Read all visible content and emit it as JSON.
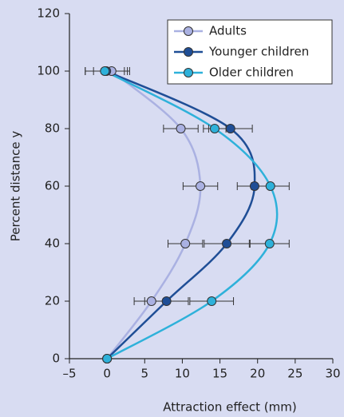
{
  "chart_data": {
    "type": "line",
    "xlabel": "Attraction effect (mm)",
    "ylabel": "Percent distance y",
    "y": [
      0,
      20,
      40,
      60,
      80,
      100
    ],
    "series": [
      {
        "name": "Adults",
        "color": "#aab1e2",
        "values": [
          0,
          5.9,
          10.4,
          12.4,
          9.8,
          0.6
        ],
        "errors": [
          null,
          2.3,
          2.3,
          2.3,
          2.3,
          2.4
        ]
      },
      {
        "name": "Younger children",
        "color": "#1f4e96",
        "values": [
          0,
          7.9,
          15.9,
          19.6,
          16.4,
          -0.1
        ],
        "errors": [
          null,
          2.9,
          3.0,
          2.3,
          2.9,
          2.8
        ]
      },
      {
        "name": "Older children",
        "color": "#2eb1da",
        "values": [
          0,
          13.9,
          21.6,
          21.7,
          14.3,
          -0.3
        ],
        "errors": [
          null,
          2.9,
          2.6,
          2.5,
          1.5,
          2.6
        ]
      }
    ],
    "xlim": [
      -5,
      30
    ],
    "xticks": [
      {
        "value": -5,
        "label": "–5"
      },
      0,
      5,
      10,
      15,
      20,
      25,
      30
    ],
    "ylim": [
      0,
      120
    ],
    "yticks": [
      0,
      20,
      40,
      60,
      80,
      100,
      120
    ],
    "legend": "upper right"
  }
}
